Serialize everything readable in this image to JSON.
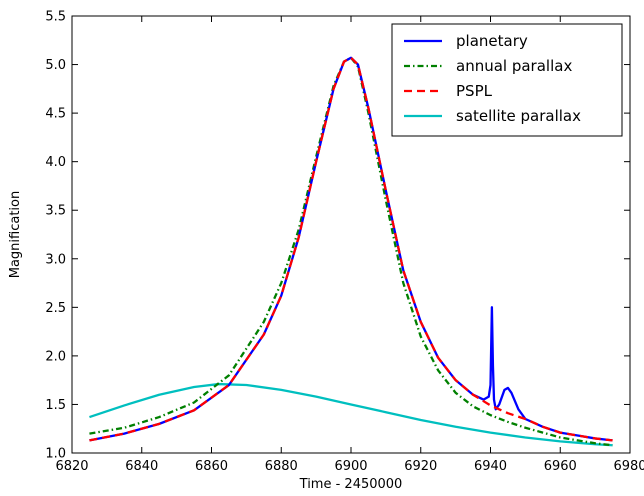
{
  "chart_data": {
    "type": "line",
    "xlabel": "Time - 2450000",
    "ylabel": "Magnification",
    "xlim": [
      6820,
      6980
    ],
    "ylim": [
      1.0,
      5.5
    ],
    "xticks": [
      6820,
      6840,
      6860,
      6880,
      6900,
      6920,
      6940,
      6960,
      6980
    ],
    "yticks": [
      1.0,
      1.5,
      2.0,
      2.5,
      3.0,
      3.5,
      4.0,
      4.5,
      5.0,
      5.5
    ],
    "xtick_labels": [
      "6820",
      "6840",
      "6860",
      "6880",
      "6900",
      "6920",
      "6940",
      "6960",
      "6980"
    ],
    "ytick_labels": [
      "1.0",
      "1.5",
      "2.0",
      "2.5",
      "3.0",
      "3.5",
      "4.0",
      "4.5",
      "5.0",
      "5.5"
    ],
    "grid": false,
    "legend_placement": "top-right",
    "series": [
      {
        "name": "planetary",
        "color": "#0000ff",
        "style": "solid",
        "x": [
          6825,
          6835,
          6845,
          6855,
          6865,
          6875,
          6880,
          6885,
          6890,
          6895,
          6898,
          6900,
          6902,
          6905,
          6910,
          6915,
          6920,
          6925,
          6930,
          6935,
          6938,
          6939.5,
          6940,
          6940.4,
          6940.7,
          6941,
          6941.5,
          6942.5,
          6944,
          6945,
          6946,
          6948,
          6950,
          6955,
          6960,
          6965,
          6970,
          6975
        ],
        "y": [
          1.13,
          1.2,
          1.3,
          1.44,
          1.7,
          2.22,
          2.62,
          3.22,
          4.0,
          4.75,
          5.03,
          5.07,
          5.0,
          4.55,
          3.7,
          2.88,
          2.35,
          1.98,
          1.75,
          1.6,
          1.55,
          1.58,
          1.7,
          2.5,
          1.9,
          1.55,
          1.45,
          1.5,
          1.65,
          1.67,
          1.62,
          1.45,
          1.35,
          1.27,
          1.21,
          1.18,
          1.15,
          1.13
        ]
      },
      {
        "name": "annual parallax",
        "color": "#008000",
        "style": "dashdot",
        "x": [
          6825,
          6835,
          6845,
          6855,
          6865,
          6875,
          6880,
          6885,
          6890,
          6895,
          6898,
          6900,
          6902,
          6905,
          6910,
          6915,
          6920,
          6925,
          6930,
          6935,
          6940,
          6945,
          6950,
          6955,
          6960,
          6965,
          6970,
          6975
        ],
        "y": [
          1.2,
          1.26,
          1.37,
          1.52,
          1.8,
          2.35,
          2.75,
          3.3,
          4.05,
          4.78,
          5.03,
          5.07,
          4.98,
          4.5,
          3.6,
          2.75,
          2.2,
          1.85,
          1.62,
          1.48,
          1.39,
          1.32,
          1.26,
          1.21,
          1.16,
          1.13,
          1.1,
          1.08
        ]
      },
      {
        "name": "PSPL",
        "color": "#ff0000",
        "style": "dashed",
        "x": [
          6825,
          6835,
          6845,
          6855,
          6865,
          6875,
          6880,
          6885,
          6890,
          6895,
          6898,
          6900,
          6902,
          6905,
          6910,
          6915,
          6920,
          6925,
          6930,
          6935,
          6940,
          6945,
          6950,
          6955,
          6960,
          6965,
          6970,
          6975
        ],
        "y": [
          1.13,
          1.2,
          1.3,
          1.44,
          1.7,
          2.22,
          2.62,
          3.22,
          4.0,
          4.75,
          5.03,
          5.07,
          5.0,
          4.55,
          3.7,
          2.88,
          2.35,
          1.98,
          1.75,
          1.6,
          1.49,
          1.41,
          1.35,
          1.27,
          1.21,
          1.18,
          1.15,
          1.13
        ]
      },
      {
        "name": "satellite parallax",
        "color": "#00bfbf",
        "style": "solid",
        "x": [
          6825,
          6835,
          6845,
          6855,
          6862,
          6870,
          6880,
          6890,
          6900,
          6910,
          6920,
          6930,
          6940,
          6950,
          6960,
          6970,
          6975
        ],
        "y": [
          1.37,
          1.49,
          1.6,
          1.68,
          1.71,
          1.7,
          1.65,
          1.58,
          1.5,
          1.42,
          1.34,
          1.27,
          1.21,
          1.16,
          1.12,
          1.09,
          1.08
        ]
      }
    ]
  }
}
